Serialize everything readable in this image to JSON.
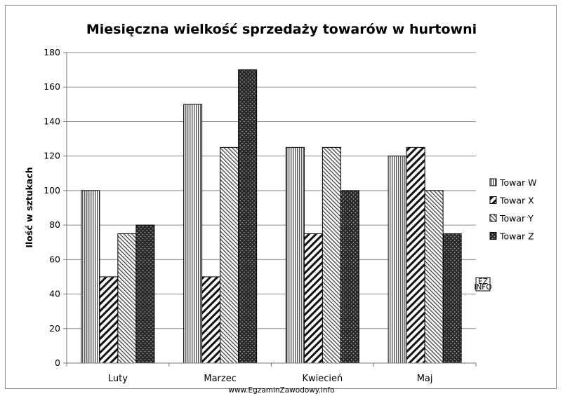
{
  "chart_data": {
    "type": "bar",
    "title": "Miesięczna wielkość sprzedaży towarów w hurtowni",
    "xlabel": "",
    "ylabel": "Ilość w sztukach",
    "categories": [
      "Luty",
      "Marzec",
      "Kwiecień",
      "Maj"
    ],
    "series": [
      {
        "name": "Towar W",
        "values": [
          100,
          150,
          125,
          120
        ],
        "pattern": "vertical-lines"
      },
      {
        "name": "Towar X",
        "values": [
          50,
          50,
          75,
          125
        ],
        "pattern": "wide-diagonal"
      },
      {
        "name": "Towar Y",
        "values": [
          75,
          125,
          125,
          100
        ],
        "pattern": "light-diagonal"
      },
      {
        "name": "Towar Z",
        "values": [
          80,
          170,
          100,
          75
        ],
        "pattern": "dark-crosshatch"
      }
    ],
    "ylim": [
      0,
      180
    ],
    "yticks": [
      0,
      20,
      40,
      60,
      80,
      100,
      120,
      140,
      160,
      180
    ],
    "grid": true,
    "legend_position": "right"
  },
  "watermark": {
    "url_text": "www.EgzaminZawodowy.info",
    "logo_text": [
      "EZ",
      "INFO"
    ]
  }
}
